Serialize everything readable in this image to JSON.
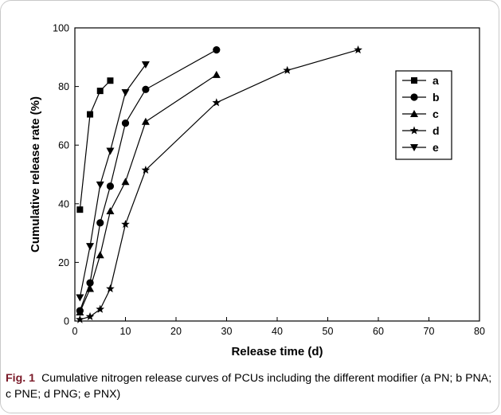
{
  "caption": {
    "label": "Fig. 1",
    "text": "Cumulative nitrogen release curves of PCUs including the different modifier (a PN; b PNA; c PNE; d PNG; e PNX)"
  },
  "chart_data": {
    "type": "line",
    "title": "",
    "xlabel": "Release time  (d)",
    "ylabel": "Cumulative release rate (%)",
    "xlim": [
      0,
      80
    ],
    "ylim": [
      0,
      100
    ],
    "xticks": [
      0,
      10,
      20,
      30,
      40,
      50,
      60,
      70,
      80
    ],
    "yticks": [
      0,
      20,
      40,
      60,
      80,
      100
    ],
    "grid": false,
    "legend_position": "top-right",
    "series": [
      {
        "name": "a",
        "marker": "square",
        "x": [
          1,
          3,
          5,
          7
        ],
        "y": [
          38,
          70.5,
          78.5,
          82
        ]
      },
      {
        "name": "b",
        "marker": "circle",
        "x": [
          1,
          3,
          5,
          7,
          10,
          14,
          28
        ],
        "y": [
          3.5,
          13,
          33.5,
          46,
          67.5,
          79,
          92.5
        ]
      },
      {
        "name": "c",
        "marker": "triangle-up",
        "x": [
          1,
          3,
          5,
          7,
          10,
          14,
          28
        ],
        "y": [
          3,
          11,
          22.5,
          37.5,
          47.5,
          68,
          84
        ]
      },
      {
        "name": "d",
        "marker": "star",
        "x": [
          1,
          3,
          5,
          7,
          10,
          14,
          28,
          42,
          56
        ],
        "y": [
          0.5,
          1.5,
          4,
          11,
          33,
          51.5,
          74.5,
          85.5,
          92.5
        ]
      },
      {
        "name": "e",
        "marker": "triangle-down",
        "x": [
          1,
          3,
          5,
          7,
          10,
          14
        ],
        "y": [
          8,
          25.5,
          46.5,
          58,
          78,
          87.5
        ]
      }
    ]
  }
}
